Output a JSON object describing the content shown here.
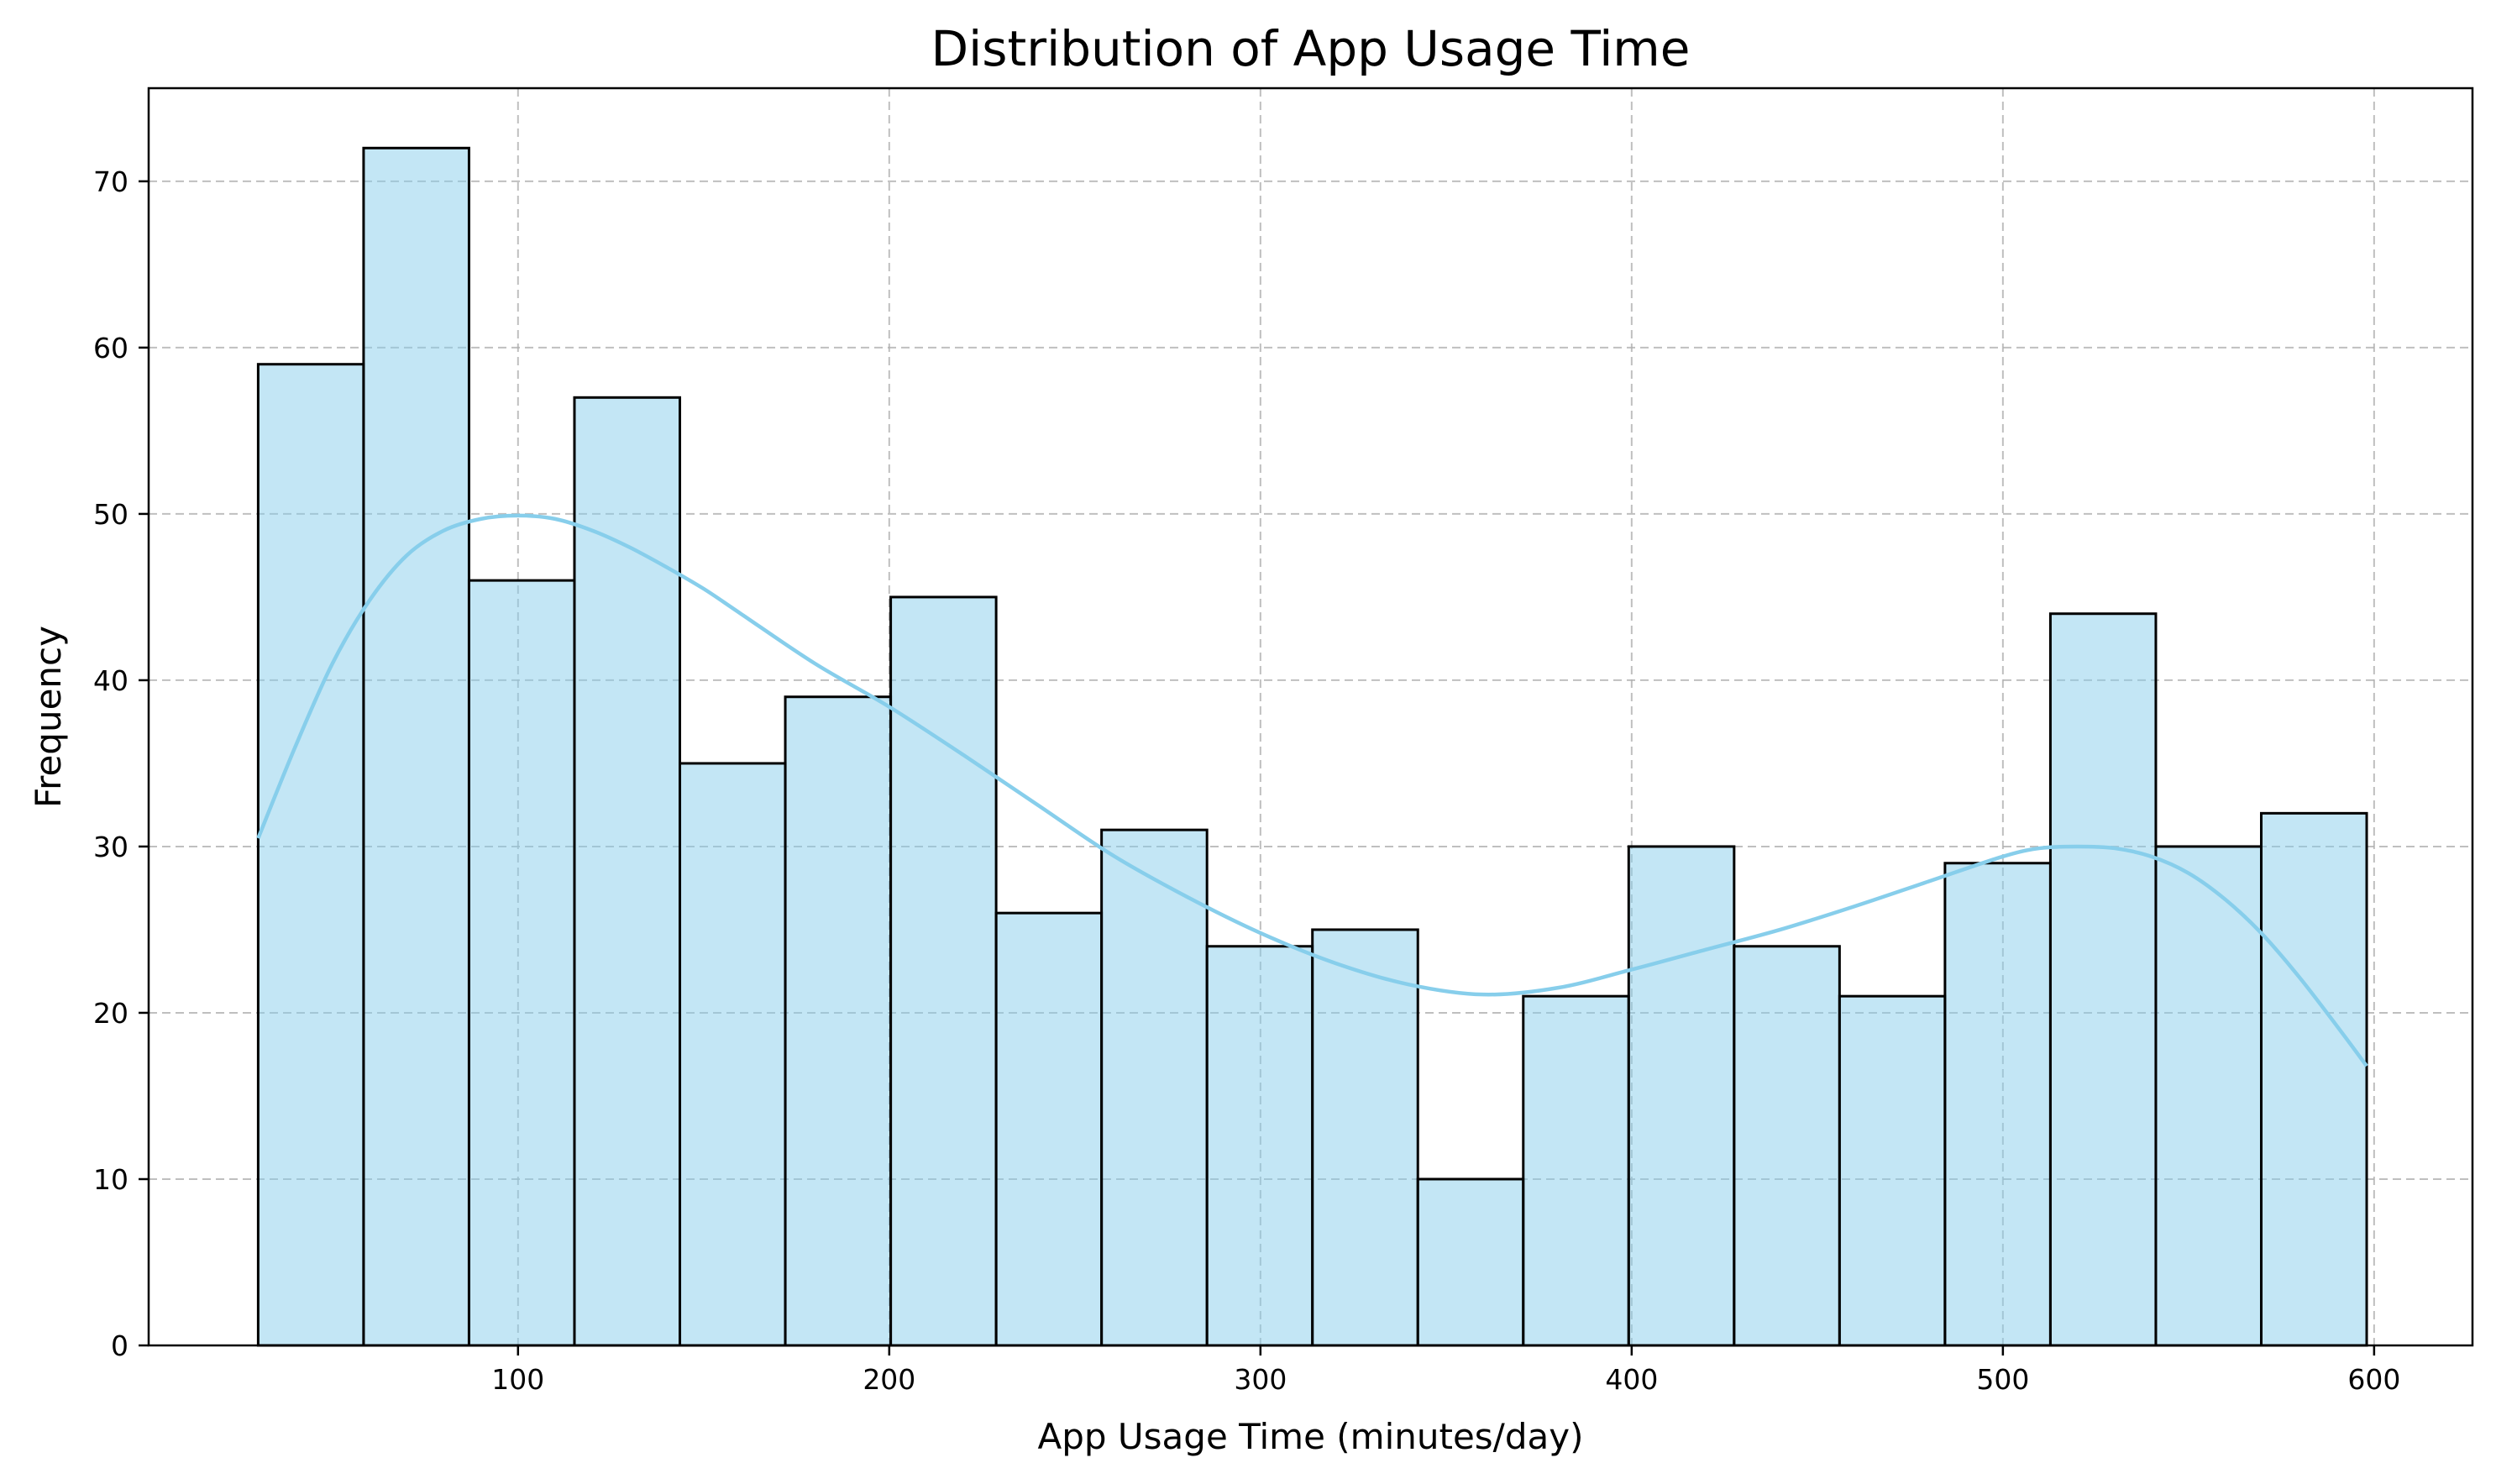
{
  "chart_data": {
    "type": "bar",
    "subtype": "histogram",
    "title": "Distribution of App Usage Time",
    "xlabel": "App Usage Time (minutes/day)",
    "ylabel": "Frequency",
    "xlim": [
      0.5,
      626.5
    ],
    "ylim": [
      0,
      75.6
    ],
    "xticks": [
      100,
      200,
      300,
      400,
      500,
      600
    ],
    "yticks": [
      0,
      10,
      20,
      30,
      40,
      50,
      60,
      70
    ],
    "grid": true,
    "bin_edges": [
      30,
      58.4,
      86.8,
      115.2,
      143.6,
      172.0,
      200.4,
      228.8,
      257.2,
      285.6,
      314.0,
      342.4,
      370.8,
      399.2,
      427.6,
      456.0,
      484.4,
      512.8,
      541.2,
      569.6,
      598
    ],
    "values": [
      59,
      72,
      46,
      57,
      35,
      39,
      45,
      26,
      31,
      24,
      25,
      10,
      21,
      30,
      24,
      21,
      29,
      44,
      30,
      32
    ],
    "kde": {
      "x": [
        30,
        40,
        50,
        60,
        70,
        80,
        90,
        100,
        110,
        120,
        130,
        140,
        150,
        160,
        180,
        200,
        220,
        240,
        260,
        280,
        300,
        320,
        340,
        360,
        380,
        400,
        420,
        440,
        460,
        480,
        500,
        510,
        520,
        530,
        540,
        550,
        560,
        570,
        580,
        590,
        598
      ],
      "y": [
        30.5,
        36,
        41,
        44.8,
        47.5,
        49,
        49.7,
        49.9,
        49.7,
        49,
        48,
        46.8,
        45.5,
        44,
        41,
        38.4,
        35.5,
        32.5,
        29.5,
        27,
        24.8,
        23,
        21.7,
        21.1,
        21.5,
        22.6,
        23.8,
        25,
        26.4,
        27.9,
        29.4,
        29.9,
        30,
        29.9,
        29.4,
        28.4,
        26.8,
        24.7,
        22.1,
        19.2,
        16.8
      ]
    },
    "colors": {
      "bar_fill": "#87ceeb",
      "bar_edge": "#000000",
      "kde_line": "#87ceeb",
      "grid": "#b0b0b0"
    }
  }
}
